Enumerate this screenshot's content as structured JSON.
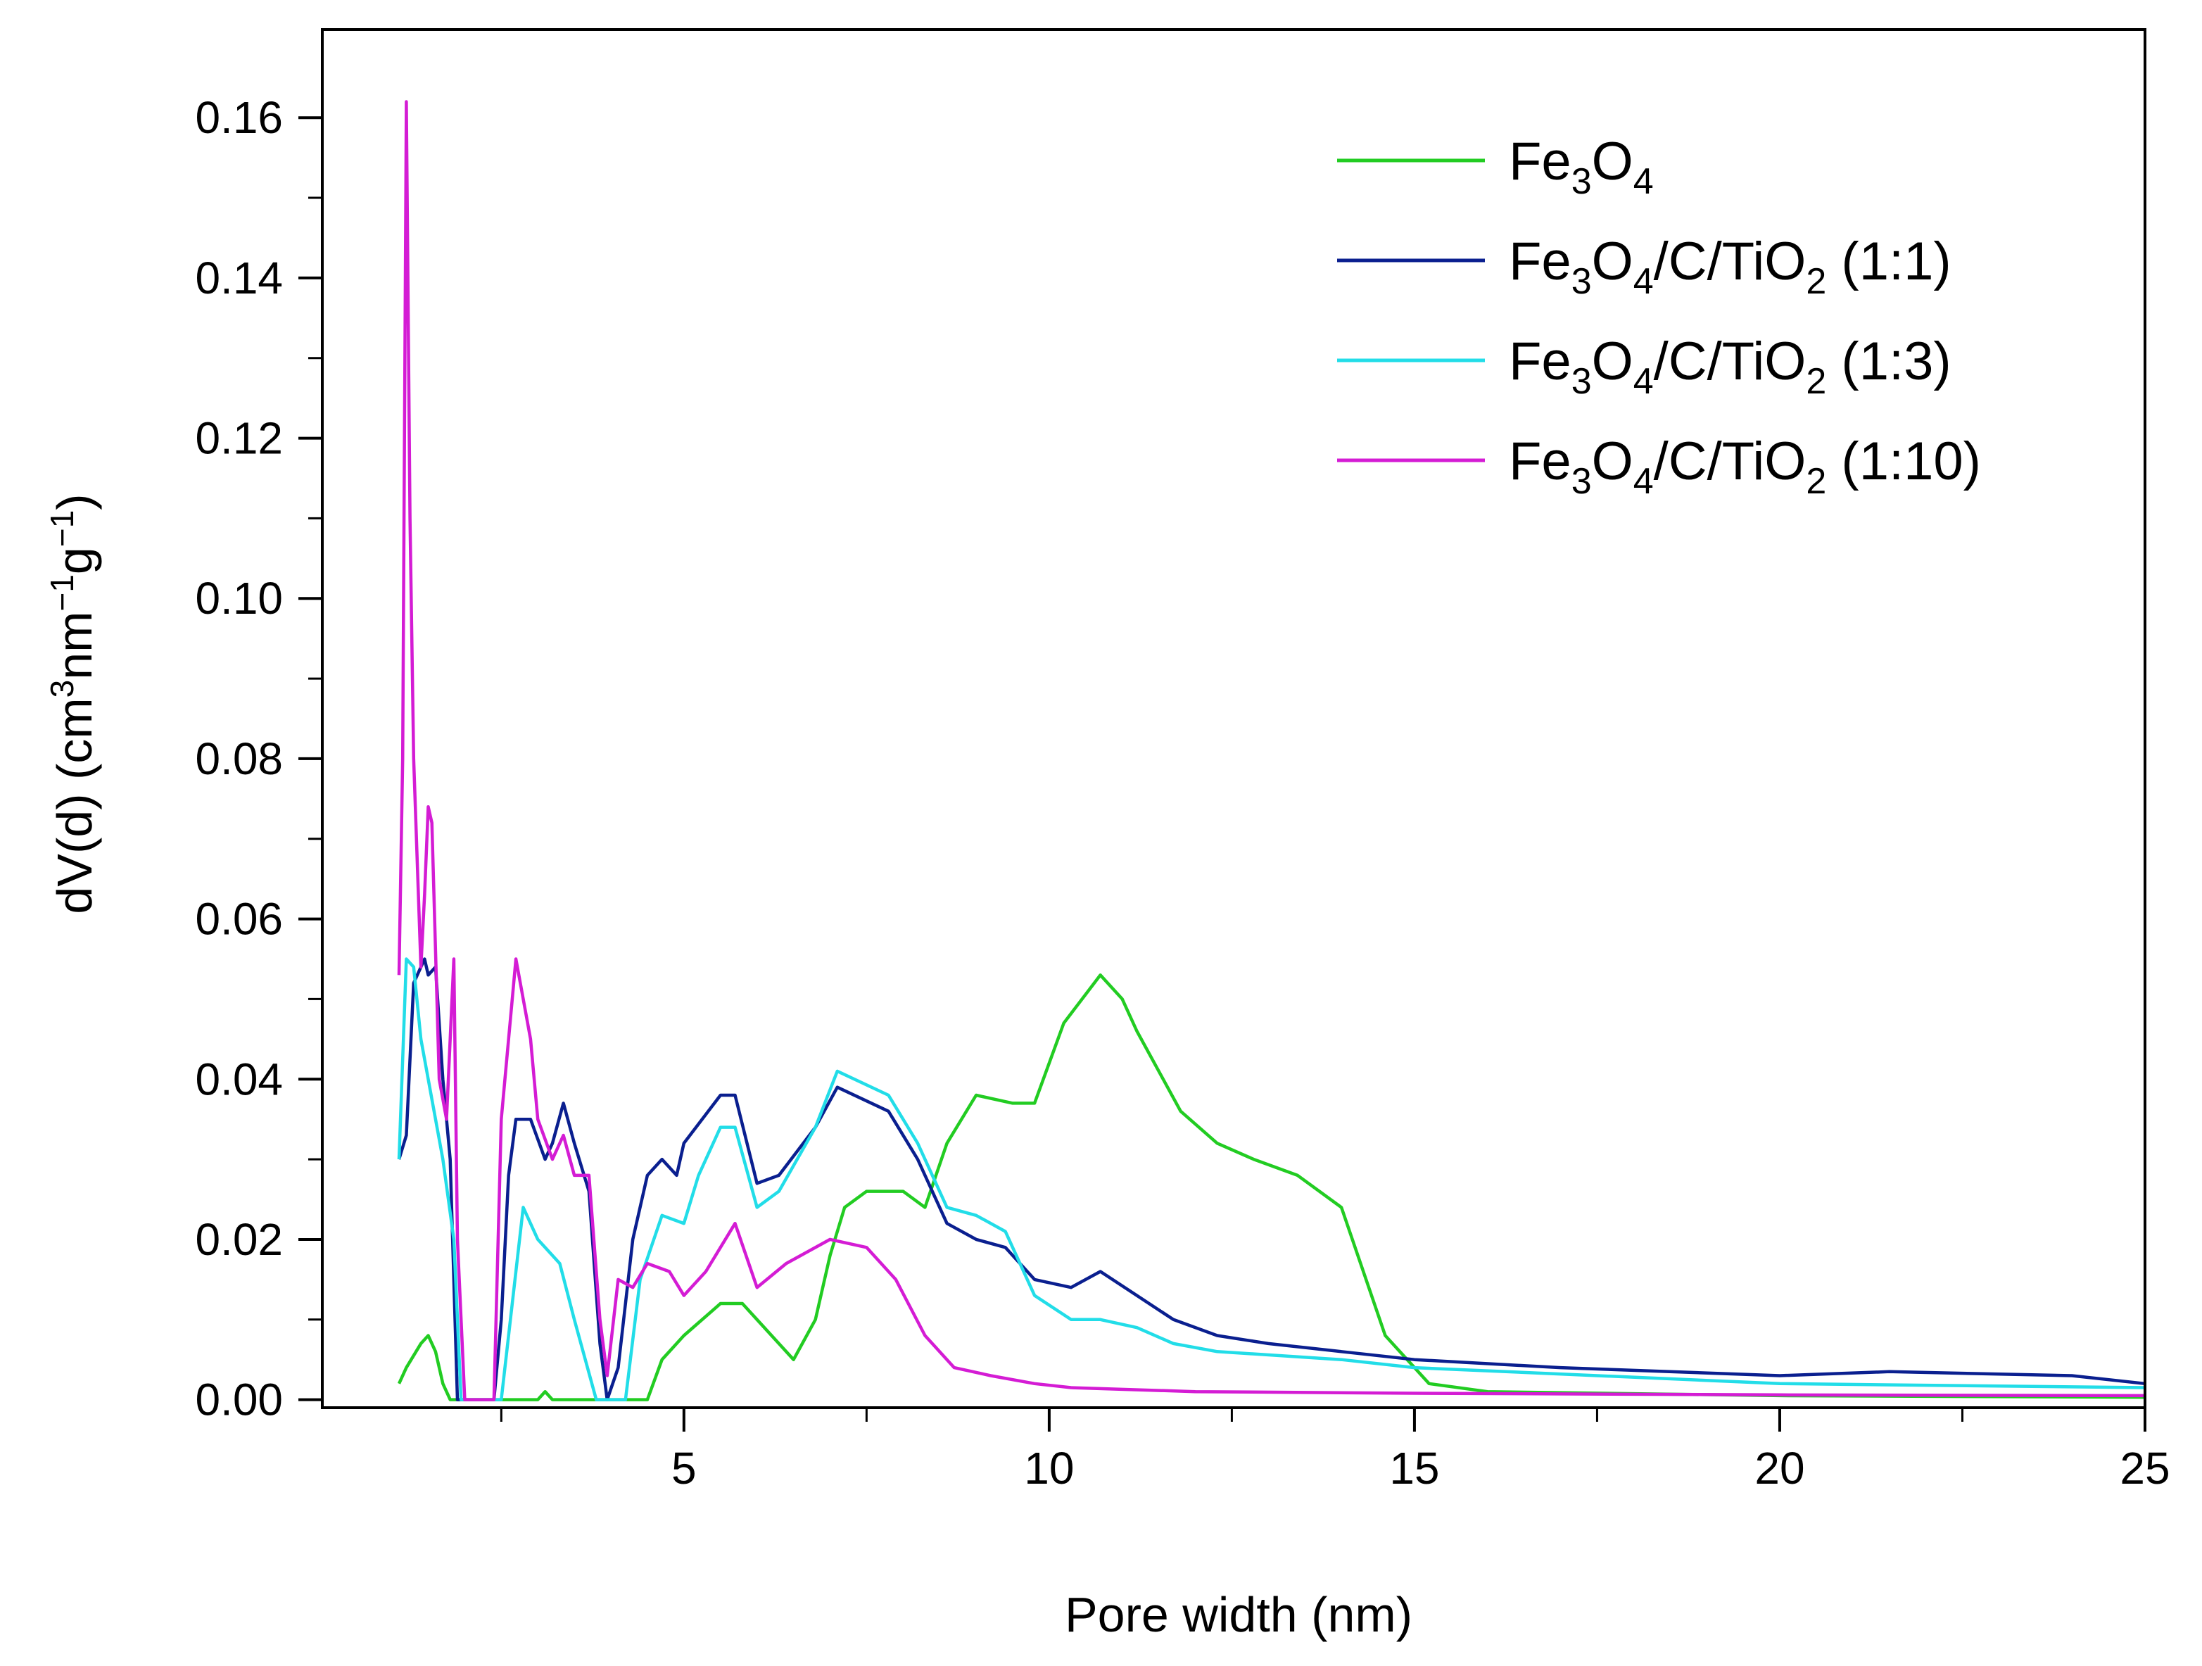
{
  "chart_data": {
    "type": "line",
    "title": "",
    "xlabel": "Pore width (nm)",
    "ylabel": "dV(d) (cm³nm⁻¹g⁻¹)",
    "ylabel_parts": {
      "base": "dV(d) (cm",
      "sup1": "3",
      "mid": "nm",
      "sup2": "−1",
      "mid2": "g",
      "sup3": "−1",
      "end": ")"
    },
    "xlim": [
      0.05,
      25
    ],
    "ylim": [
      -0.001,
      0.171
    ],
    "x_ticks": [
      5,
      10,
      15,
      20,
      25
    ],
    "x_tick_labels": [
      "5",
      "10",
      "15",
      "20",
      "25"
    ],
    "y_ticks": [
      0.0,
      0.02,
      0.04,
      0.06,
      0.08,
      0.1,
      0.12,
      0.14,
      0.16
    ],
    "y_tick_labels": [
      "0.00",
      "0.02",
      "0.04",
      "0.06",
      "0.08",
      "0.10",
      "0.12",
      "0.14",
      "0.16"
    ],
    "grid": false,
    "legend_position": "top-right",
    "series": [
      {
        "name": "Fe3O4",
        "label": {
          "p1": "Fe",
          "s1": "3",
          "p2": "O",
          "s2": "4",
          "p3": ""
        },
        "color": "#22cc22",
        "points": [
          [
            1.1,
            0.002
          ],
          [
            1.2,
            0.004
          ],
          [
            1.4,
            0.007
          ],
          [
            1.5,
            0.008
          ],
          [
            1.6,
            0.006
          ],
          [
            1.7,
            0.002
          ],
          [
            1.8,
            0.0
          ],
          [
            2.5,
            0.0
          ],
          [
            3.0,
            0.0
          ],
          [
            3.1,
            0.001
          ],
          [
            3.2,
            0.0
          ],
          [
            4.0,
            0.0
          ],
          [
            4.5,
            0.0
          ],
          [
            4.7,
            0.005
          ],
          [
            5.0,
            0.008
          ],
          [
            5.5,
            0.012
          ],
          [
            5.8,
            0.012
          ],
          [
            6.0,
            0.01
          ],
          [
            6.3,
            0.007
          ],
          [
            6.5,
            0.005
          ],
          [
            6.8,
            0.01
          ],
          [
            7.0,
            0.018
          ],
          [
            7.2,
            0.024
          ],
          [
            7.5,
            0.026
          ],
          [
            8.0,
            0.026
          ],
          [
            8.3,
            0.024
          ],
          [
            8.6,
            0.032
          ],
          [
            9.0,
            0.038
          ],
          [
            9.5,
            0.037
          ],
          [
            9.8,
            0.037
          ],
          [
            10.2,
            0.047
          ],
          [
            10.7,
            0.053
          ],
          [
            11.0,
            0.05
          ],
          [
            11.2,
            0.046
          ],
          [
            11.8,
            0.036
          ],
          [
            12.3,
            0.032
          ],
          [
            12.8,
            0.03
          ],
          [
            13.4,
            0.028
          ],
          [
            14.0,
            0.024
          ],
          [
            14.6,
            0.008
          ],
          [
            15.2,
            0.002
          ],
          [
            16.0,
            0.001
          ],
          [
            20.0,
            0.0005
          ],
          [
            25.0,
            0.0003
          ]
        ]
      },
      {
        "name": "Fe3O4/C/TiO2 (1:1)",
        "label": {
          "p1": "Fe",
          "s1": "3",
          "p2": "O",
          "s2": "4",
          "p3": "/C/TiO",
          "s3": "2",
          "p4": " (1:1)"
        },
        "color": "#0a1f8f",
        "points": [
          [
            1.1,
            0.03
          ],
          [
            1.2,
            0.033
          ],
          [
            1.3,
            0.052
          ],
          [
            1.45,
            0.055
          ],
          [
            1.5,
            0.053
          ],
          [
            1.6,
            0.054
          ],
          [
            1.7,
            0.04
          ],
          [
            1.8,
            0.03
          ],
          [
            1.9,
            0.0
          ],
          [
            2.4,
            0.0
          ],
          [
            2.5,
            0.01
          ],
          [
            2.6,
            0.028
          ],
          [
            2.7,
            0.035
          ],
          [
            2.9,
            0.035
          ],
          [
            3.1,
            0.03
          ],
          [
            3.2,
            0.032
          ],
          [
            3.35,
            0.037
          ],
          [
            3.5,
            0.032
          ],
          [
            3.7,
            0.026
          ],
          [
            3.85,
            0.007
          ],
          [
            3.95,
            0.0
          ],
          [
            4.1,
            0.004
          ],
          [
            4.3,
            0.02
          ],
          [
            4.5,
            0.028
          ],
          [
            4.7,
            0.03
          ],
          [
            4.9,
            0.028
          ],
          [
            5.0,
            0.032
          ],
          [
            5.5,
            0.038
          ],
          [
            5.7,
            0.038
          ],
          [
            6.0,
            0.027
          ],
          [
            6.3,
            0.028
          ],
          [
            6.8,
            0.034
          ],
          [
            7.1,
            0.039
          ],
          [
            7.8,
            0.036
          ],
          [
            8.2,
            0.03
          ],
          [
            8.6,
            0.022
          ],
          [
            9.0,
            0.02
          ],
          [
            9.4,
            0.019
          ],
          [
            9.8,
            0.015
          ],
          [
            10.3,
            0.014
          ],
          [
            10.7,
            0.016
          ],
          [
            11.2,
            0.013
          ],
          [
            11.7,
            0.01
          ],
          [
            12.3,
            0.008
          ],
          [
            13.0,
            0.007
          ],
          [
            14.0,
            0.006
          ],
          [
            15.0,
            0.005
          ],
          [
            17.0,
            0.004
          ],
          [
            20.0,
            0.003
          ],
          [
            21.5,
            0.0035
          ],
          [
            24.0,
            0.003
          ],
          [
            25.0,
            0.002
          ]
        ]
      },
      {
        "name": "Fe3O4/C/TiO2 (1:3)",
        "label": {
          "p1": "Fe",
          "s1": "3",
          "p2": "O",
          "s2": "4",
          "p3": "/C/TiO",
          "s3": "2",
          "p4": " (1:3)"
        },
        "color": "#22dde8",
        "points": [
          [
            1.1,
            0.03
          ],
          [
            1.2,
            0.055
          ],
          [
            1.3,
            0.054
          ],
          [
            1.4,
            0.045
          ],
          [
            1.5,
            0.04
          ],
          [
            1.6,
            0.035
          ],
          [
            1.7,
            0.03
          ],
          [
            1.85,
            0.02
          ],
          [
            1.95,
            0.0
          ],
          [
            2.5,
            0.0
          ],
          [
            2.6,
            0.008
          ],
          [
            2.8,
            0.024
          ],
          [
            3.0,
            0.02
          ],
          [
            3.3,
            0.017
          ],
          [
            3.5,
            0.01
          ],
          [
            3.8,
            0.0
          ],
          [
            4.2,
            0.0
          ],
          [
            4.4,
            0.015
          ],
          [
            4.7,
            0.023
          ],
          [
            5.0,
            0.022
          ],
          [
            5.2,
            0.028
          ],
          [
            5.5,
            0.034
          ],
          [
            5.7,
            0.034
          ],
          [
            6.0,
            0.024
          ],
          [
            6.3,
            0.026
          ],
          [
            6.8,
            0.034
          ],
          [
            7.1,
            0.041
          ],
          [
            7.8,
            0.038
          ],
          [
            8.2,
            0.032
          ],
          [
            8.6,
            0.024
          ],
          [
            9.0,
            0.023
          ],
          [
            9.4,
            0.021
          ],
          [
            9.8,
            0.013
          ],
          [
            10.3,
            0.01
          ],
          [
            10.7,
            0.01
          ],
          [
            11.2,
            0.009
          ],
          [
            11.7,
            0.007
          ],
          [
            12.3,
            0.006
          ],
          [
            14.0,
            0.005
          ],
          [
            15.0,
            0.004
          ],
          [
            20.0,
            0.002
          ],
          [
            25.0,
            0.0015
          ]
        ]
      },
      {
        "name": "Fe3O4/C/TiO2 (1:10)",
        "label": {
          "p1": "Fe",
          "s1": "3",
          "p2": "O",
          "s2": "4",
          "p3": "/C/TiO",
          "s3": "2",
          "p4": " (1:10)"
        },
        "color": "#d41cd4",
        "points": [
          [
            1.1,
            0.053
          ],
          [
            1.15,
            0.08
          ],
          [
            1.2,
            0.162
          ],
          [
            1.25,
            0.11
          ],
          [
            1.3,
            0.08
          ],
          [
            1.4,
            0.054
          ],
          [
            1.45,
            0.063
          ],
          [
            1.5,
            0.074
          ],
          [
            1.55,
            0.072
          ],
          [
            1.65,
            0.04
          ],
          [
            1.75,
            0.035
          ],
          [
            1.85,
            0.055
          ],
          [
            1.9,
            0.02
          ],
          [
            2.0,
            0.0
          ],
          [
            2.4,
            0.0
          ],
          [
            2.5,
            0.035
          ],
          [
            2.7,
            0.055
          ],
          [
            2.9,
            0.045
          ],
          [
            3.0,
            0.035
          ],
          [
            3.2,
            0.03
          ],
          [
            3.35,
            0.033
          ],
          [
            3.5,
            0.028
          ],
          [
            3.7,
            0.028
          ],
          [
            3.85,
            0.01
          ],
          [
            3.95,
            0.003
          ],
          [
            4.1,
            0.015
          ],
          [
            4.3,
            0.014
          ],
          [
            4.5,
            0.017
          ],
          [
            4.8,
            0.016
          ],
          [
            5.0,
            0.013
          ],
          [
            5.3,
            0.016
          ],
          [
            5.7,
            0.022
          ],
          [
            6.0,
            0.014
          ],
          [
            6.4,
            0.017
          ],
          [
            7.0,
            0.02
          ],
          [
            7.5,
            0.019
          ],
          [
            7.9,
            0.015
          ],
          [
            8.3,
            0.008
          ],
          [
            8.7,
            0.004
          ],
          [
            9.2,
            0.003
          ],
          [
            9.8,
            0.002
          ],
          [
            10.3,
            0.0015
          ],
          [
            12.0,
            0.001
          ],
          [
            15.0,
            0.0008
          ],
          [
            20.0,
            0.0006
          ],
          [
            25.0,
            0.0005
          ]
        ]
      }
    ]
  }
}
